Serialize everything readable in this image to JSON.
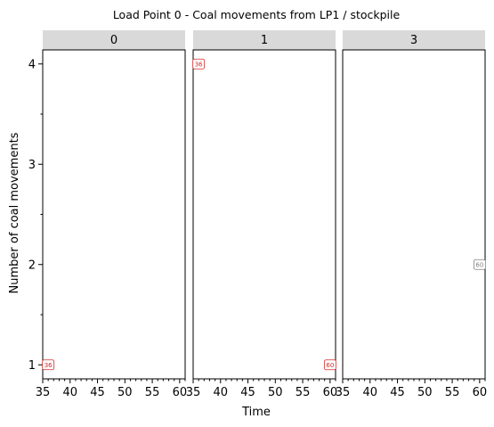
{
  "chart_data": {
    "type": "scatter",
    "title": "Load Point 0 - Coal movements from LP1 / stockpile",
    "xlabel": "Time",
    "ylabel": "Number of coal movements",
    "xlim": [
      35,
      61
    ],
    "ylim": [
      0.86,
      4.14
    ],
    "x_ticks": [
      35,
      40,
      45,
      50,
      55,
      60
    ],
    "y_ticks": [
      1,
      2,
      3,
      4
    ],
    "y_minor_ticks": [
      1.5,
      2.5,
      3.5
    ],
    "panels": [
      {
        "strip": "0",
        "points": [
          {
            "x": 36,
            "y": 1,
            "label": "36",
            "color": "#d62728"
          }
        ]
      },
      {
        "strip": "1",
        "points": [
          {
            "x": 36,
            "y": 4,
            "label": "36",
            "color": "#d62728"
          },
          {
            "x": 60,
            "y": 1,
            "label": "60",
            "color": "#d62728"
          }
        ]
      },
      {
        "strip": "3",
        "points": [
          {
            "x": 60,
            "y": 2,
            "label": "60",
            "color": "#7f7f7f"
          }
        ]
      }
    ]
  }
}
